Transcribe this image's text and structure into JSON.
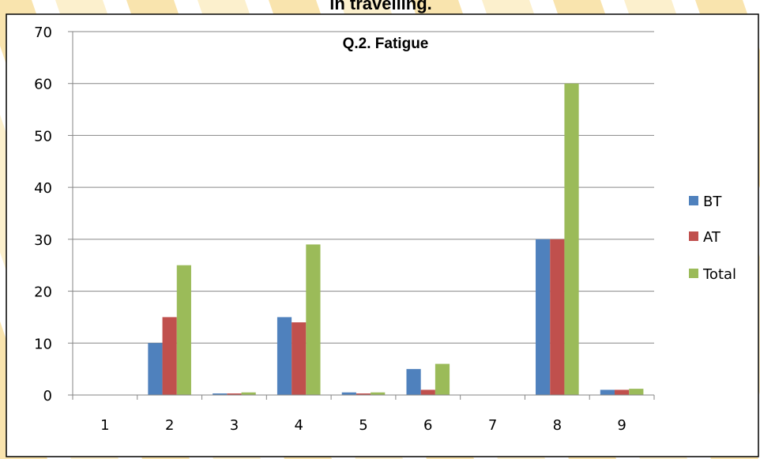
{
  "page_heading": "in travelling.",
  "chart_data": {
    "type": "bar",
    "title": "Q.2. Fatigue",
    "xlabel": "",
    "ylabel": "",
    "categories": [
      "1",
      "2",
      "3",
      "4",
      "5",
      "6",
      "7",
      "8",
      "9"
    ],
    "series": [
      {
        "name": "BT",
        "color": "#4f81bd",
        "values": [
          0,
          10,
          0.3,
          15,
          0.5,
          5,
          0,
          30,
          1
        ]
      },
      {
        "name": "AT",
        "color": "#c0504d",
        "values": [
          0,
          15,
          0.3,
          14,
          0.3,
          1,
          0,
          30,
          1
        ]
      },
      {
        "name": "Total",
        "color": "#9bbb59",
        "values": [
          0,
          25,
          0.5,
          29,
          0.5,
          6,
          0,
          60,
          1.2
        ]
      }
    ],
    "ylim": [
      0,
      70
    ],
    "yticks": [
      0,
      10,
      20,
      30,
      40,
      50,
      60,
      70
    ],
    "grid": true,
    "legend_position": "right"
  },
  "colors": {
    "background_watermark": "#fbe9b8",
    "background_watermark_dark": "#f6d98c",
    "axis": "#868686",
    "grid": "#868686",
    "text": "#000000"
  }
}
